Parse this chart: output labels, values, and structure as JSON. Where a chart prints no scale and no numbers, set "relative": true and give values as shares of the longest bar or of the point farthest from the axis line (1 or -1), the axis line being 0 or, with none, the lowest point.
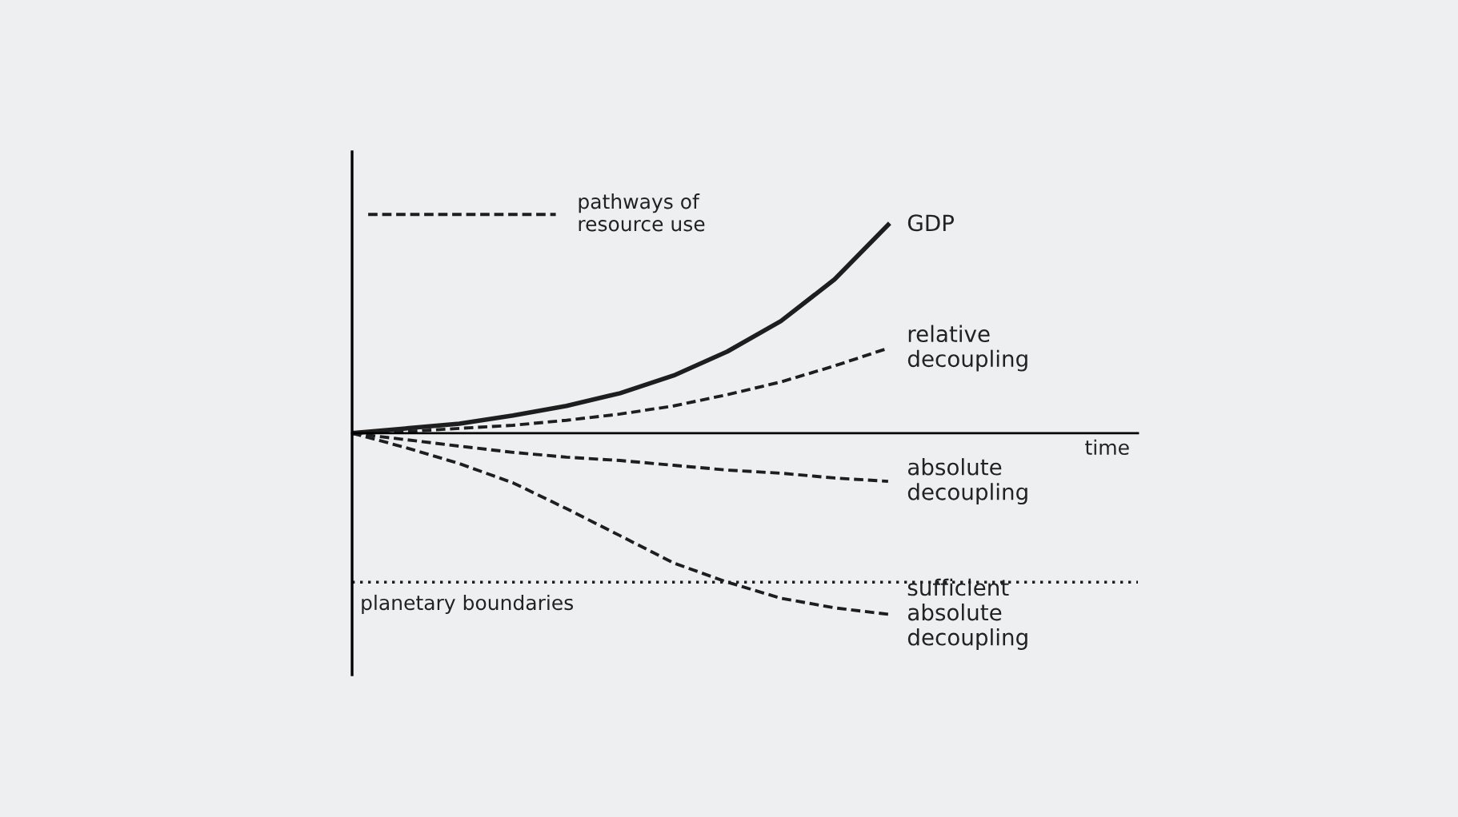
{
  "chart_data": {
    "type": "line",
    "relative": true,
    "categories": [
      null,
      null,
      null,
      null,
      null,
      null,
      null,
      null,
      null,
      null,
      null
    ],
    "series": [
      {
        "name": "GDP",
        "color": "#1e1e1e",
        "line_style": "solid",
        "values": [
          0,
          0.023,
          0.046,
          0.085,
          0.131,
          0.192,
          0.277,
          0.392,
          0.538,
          0.738,
          1
        ]
      },
      {
        "name": "relative\ndecoupling",
        "color": "#1e1e1e",
        "line_style": "dashed",
        "values": [
          0,
          0.008,
          0.023,
          0.038,
          0.062,
          0.092,
          0.131,
          0.185,
          0.246,
          0.323,
          0.408
        ]
      },
      {
        "name": "absolute\ndecoupling",
        "color": "#1e1e1e",
        "line_style": "dashed",
        "values": [
          0,
          -0.031,
          -0.062,
          -0.092,
          -0.115,
          -0.131,
          -0.154,
          -0.177,
          -0.192,
          -0.215,
          -0.231
        ]
      },
      {
        "name": "sufficient\nabsolute\ndecoupling",
        "color": "#1e1e1e",
        "line_style": "dashed",
        "values": [
          0,
          -0.069,
          -0.146,
          -0.238,
          -0.362,
          -0.492,
          -0.623,
          -0.715,
          -0.792,
          -0.838,
          -0.869
        ]
      }
    ],
    "ref_lines": [
      {
        "axis": "y",
        "value": -0.715,
        "label": "planetary boundaries",
        "color": "#1e1e1e",
        "line_style": "dotted"
      }
    ],
    "annotations": [
      "pathways of\nresource use",
      "time"
    ],
    "legend": false,
    "marker": "none"
  }
}
